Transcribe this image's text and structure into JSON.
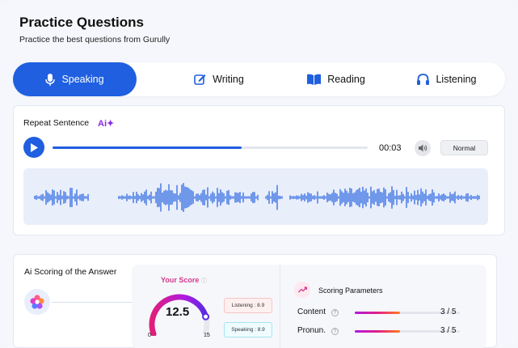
{
  "header": {
    "title": "Practice Questions",
    "subtitle": "Practice the best questions from Gurully"
  },
  "tabs": [
    {
      "label": "Speaking",
      "icon": "microphone-icon",
      "active": true
    },
    {
      "label": "Writing",
      "icon": "edit-icon",
      "active": false
    },
    {
      "label": "Reading",
      "icon": "book-icon",
      "active": false
    },
    {
      "label": "Listening",
      "icon": "headphones-icon",
      "active": false
    }
  ],
  "question": {
    "title": "Repeat Sentence",
    "ai_badge": "Ai✦",
    "player": {
      "time": "00:03",
      "progress": 0.6,
      "speed": "Normal"
    }
  },
  "scoring": {
    "title": "Ai Scoring of the Answer",
    "your_score_label": "Your Score",
    "score": "12.5",
    "score_value": 12.5,
    "min": "0",
    "max": "15",
    "chips": {
      "listening": "Listening : 8.9",
      "speaking": "Speaking : 8.9"
    },
    "parameters": {
      "title": "Scoring Parameters",
      "items": [
        {
          "label": "Content",
          "value": "3 / 5",
          "fill": 0.6
        },
        {
          "label": "Pronun.",
          "value": "3 / 5",
          "fill": 0.6
        }
      ]
    }
  },
  "colors": {
    "accent": "#1f5fe0",
    "ai_purple": "#8a2be2",
    "score_pink": "#d23a8a"
  }
}
